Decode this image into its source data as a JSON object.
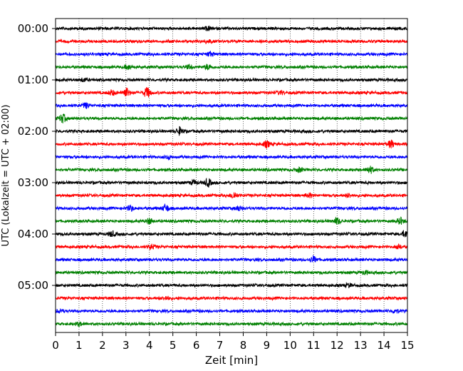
{
  "chart_data": {
    "type": "line",
    "title": "",
    "xlabel": "Zeit  [min]",
    "ylabel": "UTC (Lokalzeit = UTC + 02:00)",
    "xlim": [
      0,
      15
    ],
    "xticks": [
      "0",
      "1",
      "2",
      "3",
      "4",
      "5",
      "6",
      "7",
      "8",
      "9",
      "10",
      "11",
      "12",
      "13",
      "14",
      "15"
    ],
    "ytick_labels": [
      "00:00",
      "01:00",
      "02:00",
      "03:00",
      "04:00",
      "05:00"
    ],
    "vertical_grid": true,
    "grid_style": "dotted",
    "colors": [
      "#000000",
      "#ff0000",
      "#0000ff",
      "#008000"
    ],
    "traces": [
      {
        "time": "00:00",
        "color": "#000000",
        "bursts": [
          [
            6.5,
            1.0
          ]
        ]
      },
      {
        "time": "00:15",
        "color": "#ff0000",
        "bursts": [
          [
            6.5,
            1.0
          ]
        ]
      },
      {
        "time": "00:30",
        "color": "#0000ff",
        "bursts": [
          [
            6.6,
            1.2
          ]
        ]
      },
      {
        "time": "00:45",
        "color": "#008000",
        "bursts": [
          [
            3.1,
            1.2
          ],
          [
            5.7,
            1.0
          ],
          [
            6.5,
            1.5
          ]
        ]
      },
      {
        "time": "01:00",
        "color": "#000000",
        "bursts": [
          [
            1.2,
            1.0
          ]
        ]
      },
      {
        "time": "01:15",
        "color": "#ff0000",
        "bursts": [
          [
            2.4,
            1.5
          ],
          [
            3.0,
            2.8
          ],
          [
            3.9,
            3.0
          ],
          [
            9.6,
            1.0
          ]
        ]
      },
      {
        "time": "01:30",
        "color": "#0000ff",
        "bursts": [
          [
            1.3,
            1.5
          ]
        ]
      },
      {
        "time": "01:45",
        "color": "#008000",
        "bursts": [
          [
            0.3,
            2.5
          ]
        ]
      },
      {
        "time": "02:00",
        "color": "#000000",
        "bursts": [
          [
            5.3,
            2.2
          ]
        ]
      },
      {
        "time": "02:15",
        "color": "#ff0000",
        "bursts": [
          [
            9.0,
            1.8
          ],
          [
            14.3,
            2.2
          ]
        ]
      },
      {
        "time": "02:30",
        "color": "#0000ff",
        "bursts": [
          [
            4.8,
            1.0
          ]
        ]
      },
      {
        "time": "02:45",
        "color": "#008000",
        "bursts": [
          [
            10.4,
            1.2
          ],
          [
            13.4,
            2.0
          ]
        ]
      },
      {
        "time": "03:00",
        "color": "#000000",
        "bursts": [
          [
            5.9,
            1.2
          ],
          [
            6.5,
            2.2
          ]
        ]
      },
      {
        "time": "03:15",
        "color": "#ff0000",
        "bursts": [
          [
            7.6,
            2.0
          ],
          [
            10.8,
            1.2
          ],
          [
            12.5,
            1.0
          ]
        ]
      },
      {
        "time": "03:30",
        "color": "#0000ff",
        "bursts": [
          [
            3.2,
            1.5
          ],
          [
            4.7,
            2.0
          ],
          [
            7.8,
            1.2
          ]
        ]
      },
      {
        "time": "03:45",
        "color": "#008000",
        "bursts": [
          [
            4.0,
            1.5
          ],
          [
            12.0,
            1.8
          ],
          [
            14.7,
            1.8
          ]
        ]
      },
      {
        "time": "04:00",
        "color": "#000000",
        "bursts": [
          [
            2.4,
            1.5
          ],
          [
            14.9,
            1.8
          ]
        ]
      },
      {
        "time": "04:15",
        "color": "#ff0000",
        "bursts": [
          [
            4.1,
            1.3
          ],
          [
            14.6,
            1.2
          ]
        ]
      },
      {
        "time": "04:30",
        "color": "#0000ff",
        "bursts": [
          [
            11.0,
            1.8
          ]
        ]
      },
      {
        "time": "04:45",
        "color": "#008000",
        "bursts": [
          [
            13.2,
            1.0
          ]
        ]
      },
      {
        "time": "05:00",
        "color": "#000000",
        "bursts": [
          [
            12.5,
            1.0
          ]
        ]
      },
      {
        "time": "05:15",
        "color": "#ff0000",
        "bursts": [
          [
            4.7,
            1.0
          ]
        ]
      },
      {
        "time": "05:30",
        "color": "#0000ff",
        "bursts": [
          [
            0.2,
            1.0
          ],
          [
            14.5,
            1.2
          ]
        ]
      },
      {
        "time": "05:45",
        "color": "#008000",
        "bursts": [
          [
            1.0,
            1.0
          ]
        ]
      }
    ]
  }
}
